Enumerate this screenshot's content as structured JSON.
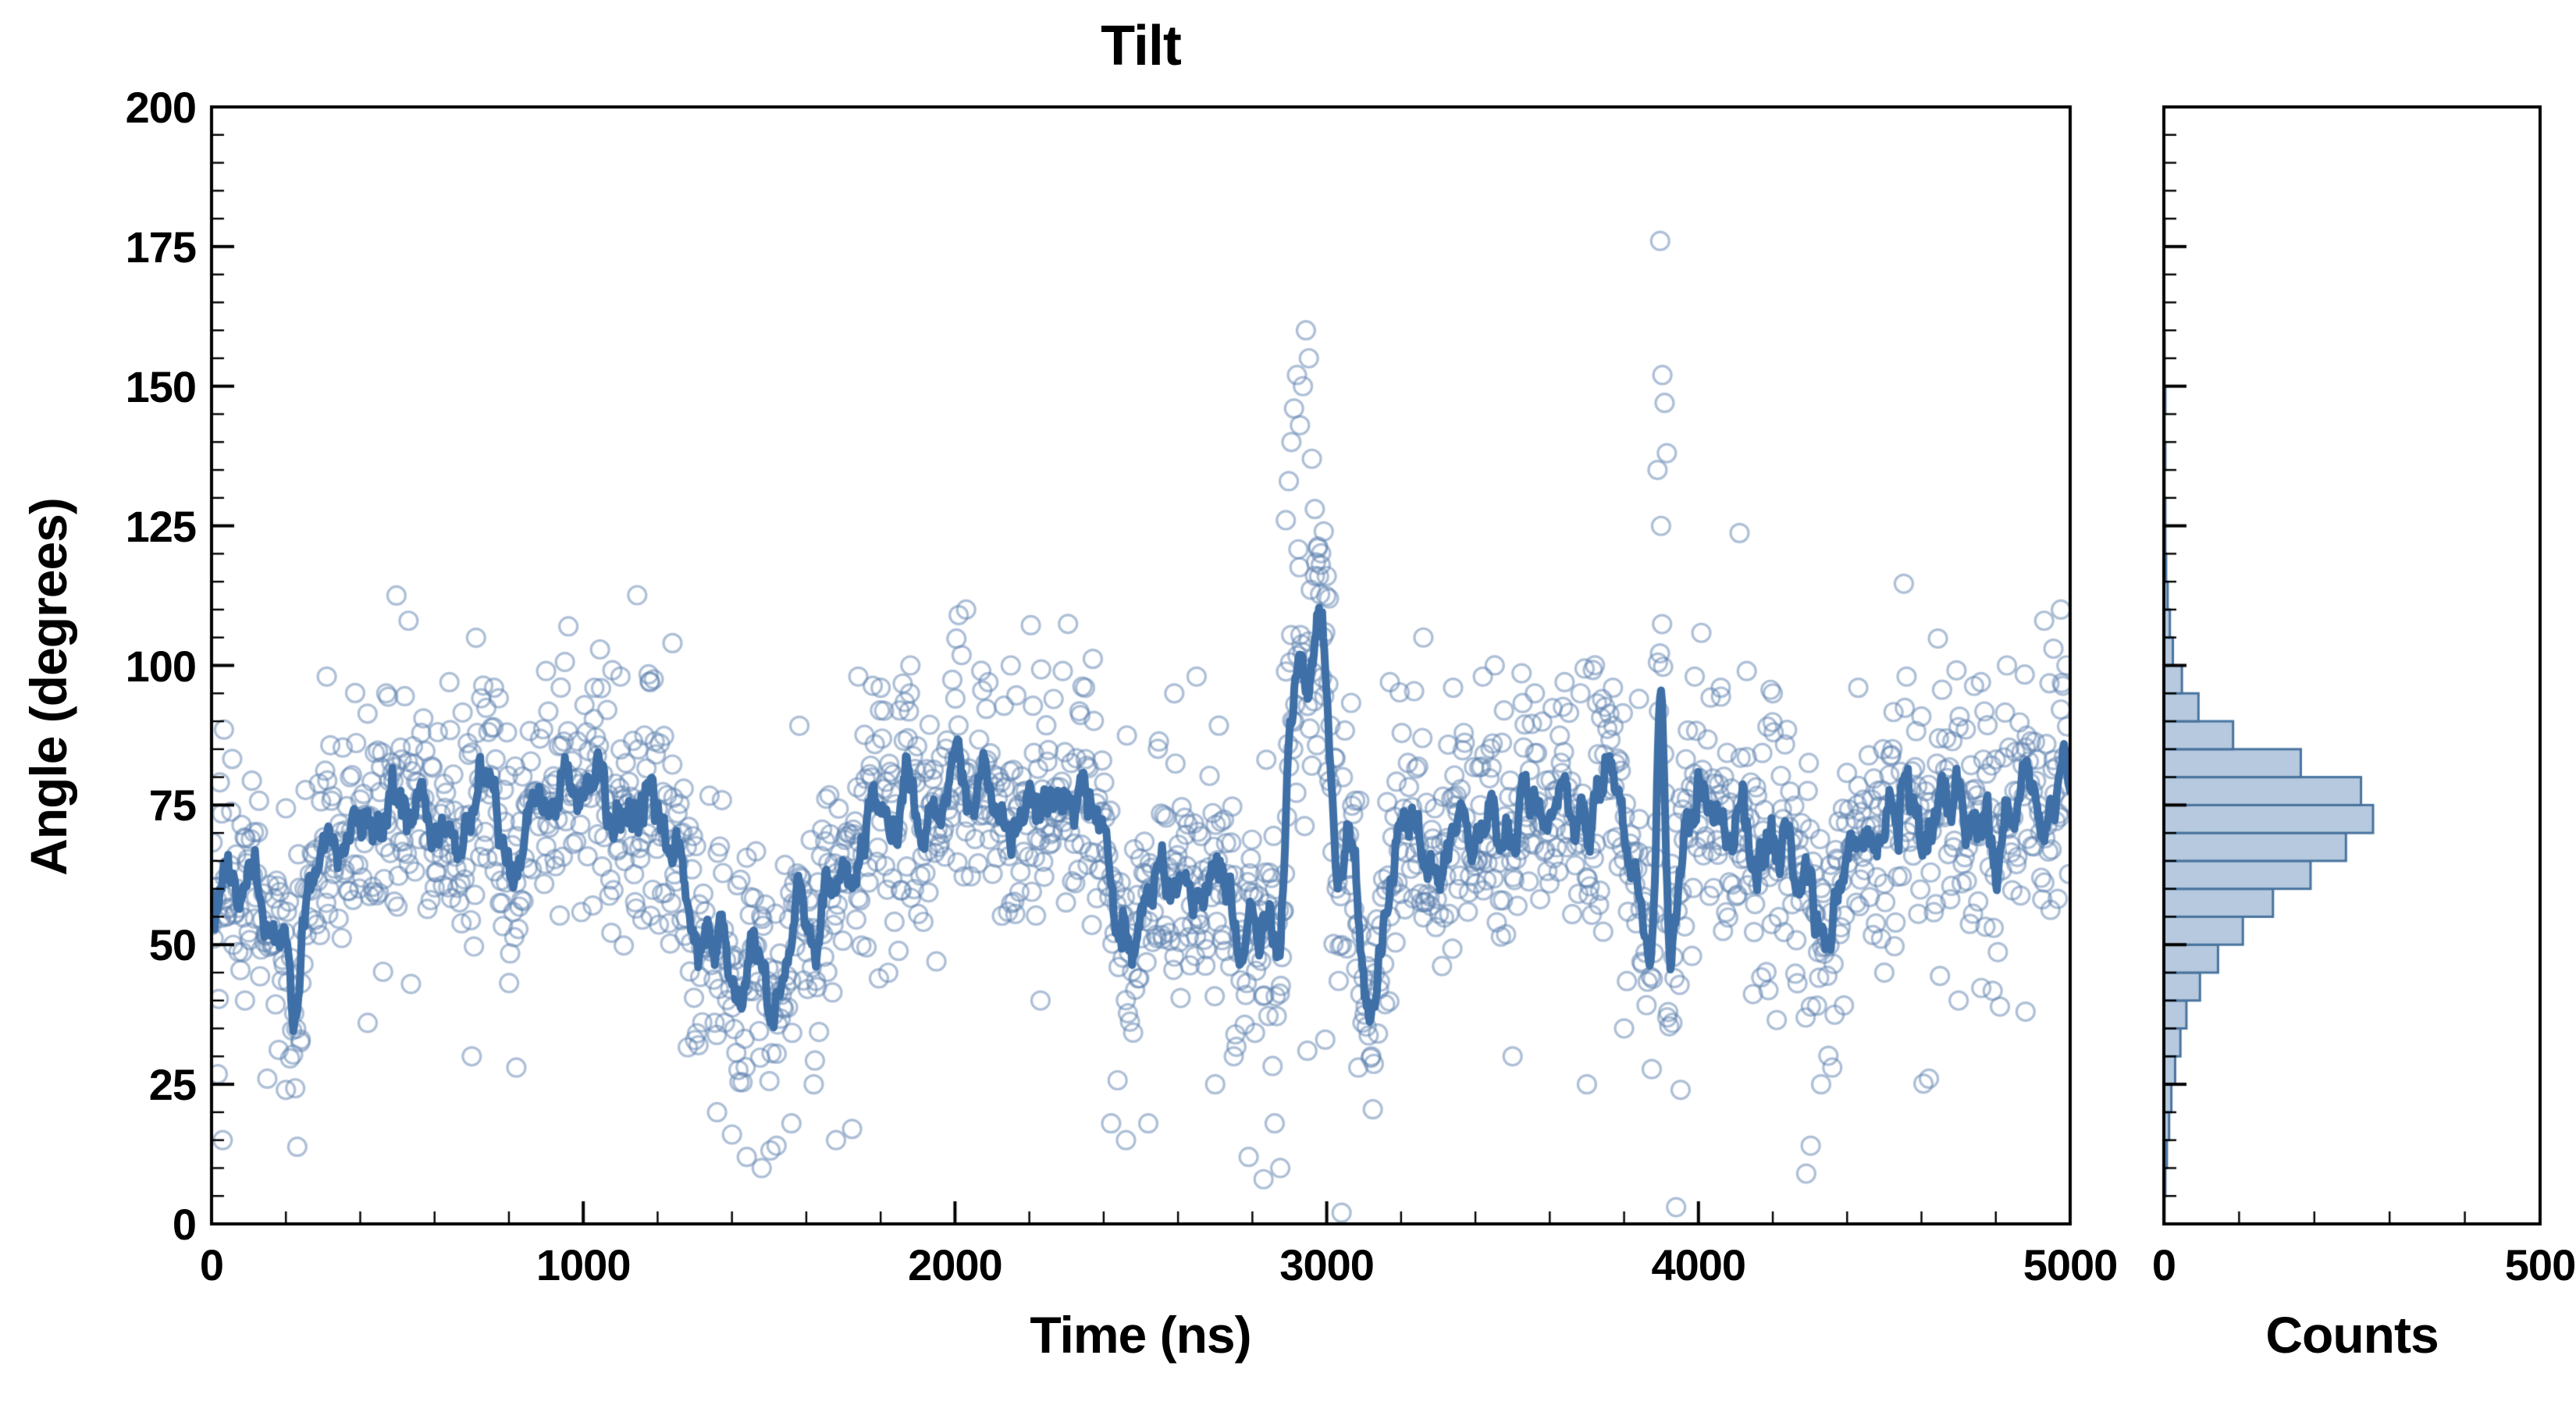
{
  "page": {
    "background": "#ffffff"
  },
  "chart_data": [
    {
      "type": "scatter",
      "title": "Tilt",
      "xlabel": "Time (ns)",
      "ylabel": "Angle (degrees)",
      "xlim": [
        0,
        5000
      ],
      "ylim": [
        0,
        200
      ],
      "xticks": [
        0,
        1000,
        2000,
        3000,
        4000,
        5000
      ],
      "yticks": [
        0,
        25,
        50,
        75,
        100,
        125,
        150,
        175,
        200
      ],
      "x_minor_step": 200,
      "y_minor_step": 5,
      "grid": false,
      "legend": "none",
      "n_points": 1800,
      "seed": 42,
      "noise_std": 11,
      "outlier_probability": 0.018,
      "marker": {
        "shape": "open-circle",
        "color": "#5d82af",
        "alpha": 0.5,
        "radius": 11.5
      },
      "line": {
        "name": "running-average",
        "color": "#3e6fa6",
        "width": 10,
        "window": 9
      },
      "spine": {
        "color": "#000000",
        "width": 4,
        "tick_direction": "in"
      },
      "trend": [
        [
          0,
          64
        ],
        [
          60,
          60
        ],
        [
          120,
          66
        ],
        [
          180,
          52
        ],
        [
          220,
          44
        ],
        [
          260,
          58
        ],
        [
          300,
          70
        ],
        [
          360,
          66
        ],
        [
          420,
          73
        ],
        [
          480,
          70
        ],
        [
          540,
          76
        ],
        [
          600,
          72
        ],
        [
          660,
          70
        ],
        [
          720,
          75
        ],
        [
          780,
          72
        ],
        [
          820,
          62
        ],
        [
          860,
          79
        ],
        [
          900,
          74
        ],
        [
          950,
          80
        ],
        [
          1000,
          74
        ],
        [
          1050,
          79
        ],
        [
          1100,
          76
        ],
        [
          1150,
          70
        ],
        [
          1200,
          74
        ],
        [
          1250,
          62
        ],
        [
          1300,
          48
        ],
        [
          1340,
          56
        ],
        [
          1380,
          44
        ],
        [
          1420,
          40
        ],
        [
          1460,
          52
        ],
        [
          1500,
          38
        ],
        [
          1540,
          46
        ],
        [
          1580,
          58
        ],
        [
          1620,
          48
        ],
        [
          1660,
          62
        ],
        [
          1700,
          56
        ],
        [
          1740,
          66
        ],
        [
          1780,
          74
        ],
        [
          1820,
          70
        ],
        [
          1860,
          76
        ],
        [
          1900,
          70
        ],
        [
          1950,
          74
        ],
        [
          2000,
          84
        ],
        [
          2040,
          70
        ],
        [
          2080,
          78
        ],
        [
          2120,
          68
        ],
        [
          2160,
          73
        ],
        [
          2200,
          70
        ],
        [
          2250,
          74
        ],
        [
          2300,
          69
        ],
        [
          2350,
          74
        ],
        [
          2400,
          72
        ],
        [
          2440,
          58
        ],
        [
          2480,
          44
        ],
        [
          2520,
          58
        ],
        [
          2560,
          68
        ],
        [
          2600,
          56
        ],
        [
          2640,
          66
        ],
        [
          2680,
          58
        ],
        [
          2720,
          66
        ],
        [
          2760,
          52
        ],
        [
          2800,
          46
        ],
        [
          2840,
          62
        ],
        [
          2870,
          42
        ],
        [
          2900,
          96
        ],
        [
          2925,
          106
        ],
        [
          2950,
          92
        ],
        [
          2975,
          108
        ],
        [
          3000,
          94
        ],
        [
          3030,
          56
        ],
        [
          3060,
          74
        ],
        [
          3090,
          48
        ],
        [
          3120,
          31
        ],
        [
          3160,
          58
        ],
        [
          3200,
          74
        ],
        [
          3250,
          70
        ],
        [
          3300,
          67
        ],
        [
          3350,
          74
        ],
        [
          3400,
          70
        ],
        [
          3450,
          77
        ],
        [
          3500,
          71
        ],
        [
          3550,
          75
        ],
        [
          3600,
          70
        ],
        [
          3650,
          77
        ],
        [
          3700,
          72
        ],
        [
          3750,
          79
        ],
        [
          3800,
          74
        ],
        [
          3850,
          56
        ],
        [
          3880,
          46
        ],
        [
          3900,
          114
        ],
        [
          3920,
          44
        ],
        [
          3950,
          66
        ],
        [
          4000,
          74
        ],
        [
          4050,
          70
        ],
        [
          4100,
          73
        ],
        [
          4150,
          68
        ],
        [
          4200,
          72
        ],
        [
          4250,
          64
        ],
        [
          4300,
          58
        ],
        [
          4350,
          43
        ],
        [
          4400,
          68
        ],
        [
          4450,
          67
        ],
        [
          4500,
          74
        ],
        [
          4550,
          79
        ],
        [
          4600,
          71
        ],
        [
          4650,
          76
        ],
        [
          4700,
          73
        ],
        [
          4750,
          77
        ],
        [
          4800,
          71
        ],
        [
          4850,
          76
        ],
        [
          4900,
          79
        ],
        [
          4950,
          72
        ],
        [
          5000,
          84
        ]
      ],
      "extra_points": [
        [
          30,
          15
        ],
        [
          90,
          40
        ],
        [
          150,
          26
        ],
        [
          200,
          24
        ],
        [
          240,
          33
        ],
        [
          310,
          98
        ],
        [
          420,
          36
        ],
        [
          470,
          95
        ],
        [
          530,
          108
        ],
        [
          640,
          97
        ],
        [
          700,
          30
        ],
        [
          760,
          96
        ],
        [
          820,
          28
        ],
        [
          900,
          99
        ],
        [
          960,
          107
        ],
        [
          1030,
          96
        ],
        [
          1100,
          98
        ],
        [
          1180,
          97
        ],
        [
          1240,
          104
        ],
        [
          1310,
          32
        ],
        [
          1360,
          20
        ],
        [
          1400,
          16
        ],
        [
          1440,
          12
        ],
        [
          1480,
          10
        ],
        [
          1520,
          14
        ],
        [
          1560,
          18
        ],
        [
          1620,
          25
        ],
        [
          1680,
          15
        ],
        [
          1740,
          98
        ],
        [
          1800,
          96
        ],
        [
          1880,
          100
        ],
        [
          1950,
          47
        ],
        [
          2010,
          109
        ],
        [
          2030,
          110
        ],
        [
          2090,
          97
        ],
        [
          2150,
          100
        ],
        [
          2230,
          40
        ],
        [
          2290,
          99
        ],
        [
          2350,
          96
        ],
        [
          2420,
          18
        ],
        [
          2460,
          15
        ],
        [
          2520,
          18
        ],
        [
          2590,
          95
        ],
        [
          2650,
          98
        ],
        [
          2700,
          25
        ],
        [
          2750,
          30
        ],
        [
          2790,
          12
        ],
        [
          2830,
          8
        ],
        [
          2860,
          18
        ],
        [
          2875,
          10
        ],
        [
          2890,
          126
        ],
        [
          2898,
          133
        ],
        [
          2905,
          140
        ],
        [
          2912,
          146
        ],
        [
          2920,
          152
        ],
        [
          2928,
          143
        ],
        [
          2936,
          150
        ],
        [
          2944,
          160
        ],
        [
          2952,
          155
        ],
        [
          2960,
          137
        ],
        [
          2968,
          128
        ],
        [
          2976,
          121
        ],
        [
          2984,
          118
        ],
        [
          2992,
          124
        ],
        [
          3000,
          116
        ],
        [
          3006,
          112
        ],
        [
          2948,
          31
        ],
        [
          2996,
          33
        ],
        [
          3040,
          2
        ],
        [
          3085,
          28
        ],
        [
          3120,
          30
        ],
        [
          3170,
          97
        ],
        [
          3260,
          105
        ],
        [
          3340,
          96
        ],
        [
          3420,
          98
        ],
        [
          3500,
          30
        ],
        [
          3560,
          95
        ],
        [
          3640,
          97
        ],
        [
          3700,
          25
        ],
        [
          3770,
          96
        ],
        [
          3800,
          35
        ],
        [
          3840,
          94
        ],
        [
          3890,
          135
        ],
        [
          3897,
          176
        ],
        [
          3903,
          152
        ],
        [
          3909,
          147
        ],
        [
          3915,
          138
        ],
        [
          3940,
          3
        ],
        [
          3952,
          24
        ],
        [
          3990,
          98
        ],
        [
          4060,
          96
        ],
        [
          4130,
          99
        ],
        [
          4200,
          95
        ],
        [
          4290,
          9
        ],
        [
          4302,
          14
        ],
        [
          4330,
          25
        ],
        [
          4360,
          28
        ],
        [
          4430,
          96
        ],
        [
          4500,
          45
        ],
        [
          4560,
          98
        ],
        [
          4620,
          26
        ],
        [
          4700,
          40
        ],
        [
          4760,
          97
        ],
        [
          4830,
          100
        ],
        [
          4880,
          38
        ],
        [
          4930,
          108
        ],
        [
          4955,
          103
        ],
        [
          4975,
          110
        ],
        [
          4990,
          100
        ]
      ]
    },
    {
      "type": "bar-horizontal-histogram",
      "xlabel": "Counts",
      "xlim": [
        0,
        500
      ],
      "xticks": [
        0,
        500
      ],
      "x_minor_step": 100,
      "ylim": [
        0,
        200
      ],
      "y_minor_step": 5,
      "bin_start": 0,
      "bin_width": 5,
      "counts": [
        1,
        2,
        4,
        7,
        10,
        15,
        22,
        30,
        48,
        72,
        105,
        145,
        195,
        242,
        278,
        262,
        182,
        92,
        46,
        24,
        12,
        8,
        5,
        3,
        2,
        2,
        1,
        2,
        1,
        2,
        1,
        1,
        0,
        0,
        0,
        1,
        0,
        0,
        0,
        0
      ],
      "fill": "#b7c9de",
      "edge": "#48749f",
      "edge_width": 3,
      "spine": {
        "color": "#000000",
        "width": 4,
        "tick_direction": "in"
      }
    }
  ]
}
